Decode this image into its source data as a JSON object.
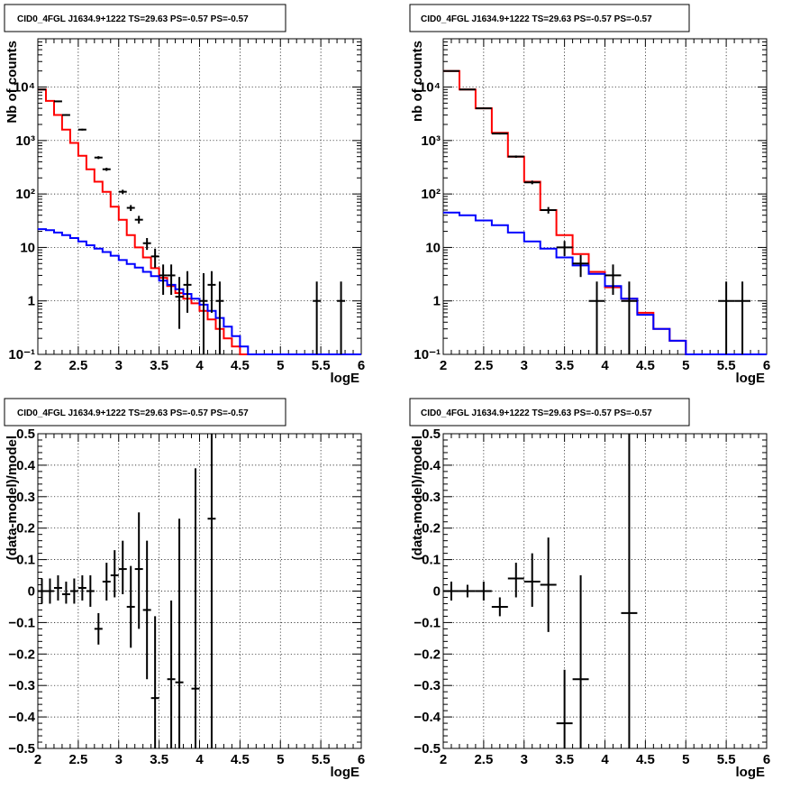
{
  "chart_data": [
    {
      "type": "step-histogram",
      "title": "CID0_4FGL J1634.9+1222 TS=29.63 PS=-0.57 PS=-0.57",
      "xlabel": "logE",
      "ylabel": "Nb of counts",
      "xlim": [
        2,
        6
      ],
      "ylim": [
        0.1,
        80000
      ],
      "log_y": true,
      "grid": true,
      "x_ticks": [
        "2",
        "2.5",
        "3",
        "3.5",
        "4",
        "4.5",
        "5",
        "5.5",
        "6"
      ],
      "y_ticks": [
        {
          "value": 0.1,
          "label": "10⁻¹"
        },
        {
          "value": 1,
          "label": "1"
        },
        {
          "value": 10,
          "label": "10"
        },
        {
          "value": 100,
          "label": "10²"
        },
        {
          "value": 1000,
          "label": "10³"
        },
        {
          "value": 10000,
          "label": "10⁴"
        }
      ],
      "bin_edges": [
        2.0,
        2.1,
        2.2,
        2.3,
        2.4,
        2.5,
        2.6,
        2.7,
        2.8,
        2.9,
        3.0,
        3.1,
        3.2,
        3.3,
        3.4,
        3.5,
        3.6,
        3.7,
        3.8,
        3.9,
        4.0,
        4.1,
        4.2,
        4.3,
        4.4,
        4.5,
        4.6,
        4.7,
        4.8,
        4.9,
        5.0,
        5.1,
        5.2,
        5.3,
        5.4,
        5.5,
        5.6,
        5.7,
        5.8,
        5.9,
        6.0
      ],
      "series": [
        {
          "color": "#ff0000",
          "values": [
            9000,
            5500,
            3000,
            1600,
            900,
            520,
            290,
            170,
            110,
            58,
            33,
            17,
            10,
            6.5,
            4.1,
            2.7,
            1.9,
            1.4,
            1.1,
            0.9,
            0.65,
            0.45,
            0.3,
            0.2,
            0.14,
            0.1,
            0.1,
            0.1,
            0.1,
            0.1,
            0.1,
            0.1,
            0.1,
            0.1,
            0.1,
            0.1,
            0.1,
            0.1,
            0.1,
            0.1
          ]
        },
        {
          "color": "#0000ff",
          "values": [
            22,
            21,
            19,
            17,
            15,
            13,
            11,
            9.5,
            8.2,
            7,
            5.8,
            4.9,
            4.2,
            3.5,
            2.9,
            2.4,
            2,
            1.65,
            1.35,
            1.1,
            0.85,
            0.65,
            0.48,
            0.33,
            0.22,
            0.14,
            0.1,
            0.1,
            0.1,
            0.1,
            0.1,
            0.1,
            0.1,
            0.1,
            0.1,
            0.1,
            0.1,
            0.1,
            0.1,
            0.1
          ]
        }
      ],
      "points": [
        {
          "x": 2.05,
          "y": 9000,
          "ylo": 8800,
          "yhi": 9200
        },
        {
          "x": 2.25,
          "y": 5400,
          "ylo": 5250,
          "yhi": 5550
        },
        {
          "x": 2.35,
          "y": 3000,
          "ylo": 2900,
          "yhi": 3100
        },
        {
          "x": 2.55,
          "y": 1600,
          "ylo": 1540,
          "yhi": 1660
        },
        {
          "x": 2.75,
          "y": 480,
          "ylo": 450,
          "yhi": 510
        },
        {
          "x": 2.85,
          "y": 290,
          "ylo": 270,
          "yhi": 310
        },
        {
          "x": 3.05,
          "y": 110,
          "ylo": 100,
          "yhi": 120
        },
        {
          "x": 3.15,
          "y": 55,
          "ylo": 48,
          "yhi": 62
        },
        {
          "x": 3.25,
          "y": 33,
          "ylo": 28,
          "yhi": 39
        },
        {
          "x": 3.35,
          "y": 12,
          "ylo": 9,
          "yhi": 15
        },
        {
          "x": 3.45,
          "y": 6.8,
          "ylo": 4.2,
          "yhi": 9.5
        },
        {
          "x": 3.55,
          "y": 3,
          "ylo": 1.3,
          "yhi": 4.8
        },
        {
          "x": 3.65,
          "y": 3,
          "ylo": 1.3,
          "yhi": 4.8
        },
        {
          "x": 3.75,
          "y": 1.2,
          "ylo": 0.3,
          "yhi": 2.8
        },
        {
          "x": 3.85,
          "y": 2,
          "ylo": 0.6,
          "yhi": 3.6
        },
        {
          "x": 4.05,
          "y": 1,
          "ylo": 0.1,
          "yhi": 3.3
        },
        {
          "x": 4.15,
          "y": 2,
          "ylo": 0.6,
          "yhi": 3.6
        },
        {
          "x": 4.25,
          "y": 1,
          "ylo": 0.1,
          "yhi": 2.3
        },
        {
          "x": 5.45,
          "y": 1,
          "ylo": 0.1,
          "yhi": 2.3
        },
        {
          "x": 5.75,
          "y": 1,
          "ylo": 0.1,
          "yhi": 2.3
        }
      ]
    },
    {
      "type": "step-histogram",
      "title": "CID0_4FGL J1634.9+1222 TS=29.63 PS=-0.57 PS=-0.57",
      "xlabel": "logE",
      "ylabel": "nb of counts",
      "xlim": [
        2,
        6
      ],
      "ylim": [
        0.1,
        80000
      ],
      "log_y": true,
      "grid": true,
      "x_ticks": [
        "2",
        "2.5",
        "3",
        "3.5",
        "4",
        "4.5",
        "5",
        "5.5",
        "6"
      ],
      "y_ticks": [
        {
          "value": 0.1,
          "label": "10⁻¹"
        },
        {
          "value": 1,
          "label": "1"
        },
        {
          "value": 10,
          "label": "10"
        },
        {
          "value": 100,
          "label": "10²"
        },
        {
          "value": 1000,
          "label": "10³"
        },
        {
          "value": 10000,
          "label": "10⁴"
        }
      ],
      "bin_edges": [
        2.0,
        2.2,
        2.4,
        2.6,
        2.8,
        3.0,
        3.2,
        3.4,
        3.6,
        3.8,
        4.0,
        4.2,
        4.4,
        4.6,
        4.8,
        5.0,
        5.2,
        5.4,
        5.6,
        5.8,
        6.0
      ],
      "series": [
        {
          "color": "#ff0000",
          "values": [
            20000,
            9000,
            4000,
            1400,
            500,
            170,
            50,
            17,
            7.5,
            3.5,
            1.8,
            1.1,
            0.6,
            0.3,
            0.18,
            0.1,
            0.1,
            0.1,
            0.1,
            0.1
          ]
        },
        {
          "color": "#0000ff",
          "values": [
            45,
            40,
            32,
            26,
            19,
            13,
            9.5,
            6.5,
            4.6,
            3.2,
            1.9,
            1.1,
            0.55,
            0.3,
            0.18,
            0.1,
            0.1,
            0.1,
            0.1,
            0.1
          ]
        }
      ],
      "points": [
        {
          "x": 2.1,
          "y": 20000,
          "ylo": 19700,
          "yhi": 20300
        },
        {
          "x": 2.3,
          "y": 9000,
          "ylo": 8800,
          "yhi": 9200
        },
        {
          "x": 2.5,
          "y": 4000,
          "ylo": 3900,
          "yhi": 4100
        },
        {
          "x": 2.7,
          "y": 1350,
          "ylo": 1300,
          "yhi": 1400
        },
        {
          "x": 2.9,
          "y": 500,
          "ylo": 475,
          "yhi": 525
        },
        {
          "x": 3.1,
          "y": 165,
          "ylo": 152,
          "yhi": 178
        },
        {
          "x": 3.3,
          "y": 50,
          "ylo": 43,
          "yhi": 57
        },
        {
          "x": 3.5,
          "y": 10,
          "ylo": 6.9,
          "yhi": 13.2
        },
        {
          "x": 3.7,
          "y": 5,
          "ylo": 2.8,
          "yhi": 7.2
        },
        {
          "x": 3.9,
          "y": 1,
          "ylo": 0.1,
          "yhi": 2.3
        },
        {
          "x": 4.1,
          "y": 3,
          "ylo": 1.3,
          "yhi": 4.8
        },
        {
          "x": 4.3,
          "y": 1,
          "ylo": 0.1,
          "yhi": 2.3
        },
        {
          "x": 5.5,
          "y": 1,
          "ylo": 0.1,
          "yhi": 2.3
        },
        {
          "x": 5.7,
          "y": 1,
          "ylo": 0.1,
          "yhi": 2.3
        }
      ]
    },
    {
      "type": "scatter",
      "title": "CID0_4FGL J1634.9+1222 TS=29.63 PS=-0.57 PS=-0.57",
      "xlabel": "logE",
      "ylabel": "(data-model)/model",
      "xlim": [
        2,
        6
      ],
      "ylim": [
        -0.5,
        0.5
      ],
      "log_y": false,
      "grid": true,
      "x_ticks": [
        "2",
        "2.5",
        "3",
        "3.5",
        "4",
        "4.5",
        "5",
        "5.5",
        "6"
      ],
      "y_ticks": [
        {
          "value": -0.5,
          "label": "−0.5"
        },
        {
          "value": -0.4,
          "label": "−0.4"
        },
        {
          "value": -0.3,
          "label": "−0.3"
        },
        {
          "value": -0.2,
          "label": "−0.2"
        },
        {
          "value": -0.1,
          "label": "−0.1"
        },
        {
          "value": 0,
          "label": "0"
        },
        {
          "value": 0.1,
          "label": "0.1"
        },
        {
          "value": 0.2,
          "label": "0.2"
        },
        {
          "value": 0.3,
          "label": "0.3"
        },
        {
          "value": 0.4,
          "label": "0.4"
        },
        {
          "value": 0.5,
          "label": "0.5"
        }
      ],
      "points": [
        {
          "x": 2.05,
          "y": 0.0,
          "ylo": -0.04,
          "yhi": 0.04
        },
        {
          "x": 2.15,
          "y": 0.0,
          "ylo": -0.04,
          "yhi": 0.04
        },
        {
          "x": 2.25,
          "y": 0.01,
          "ylo": -0.03,
          "yhi": 0.05
        },
        {
          "x": 2.35,
          "y": -0.01,
          "ylo": -0.04,
          "yhi": 0.03
        },
        {
          "x": 2.45,
          "y": 0.0,
          "ylo": -0.04,
          "yhi": 0.04
        },
        {
          "x": 2.55,
          "y": 0.01,
          "ylo": -0.03,
          "yhi": 0.05
        },
        {
          "x": 2.65,
          "y": 0.0,
          "ylo": -0.05,
          "yhi": 0.05
        },
        {
          "x": 2.75,
          "y": -0.12,
          "ylo": -0.17,
          "yhi": -0.07
        },
        {
          "x": 2.85,
          "y": 0.03,
          "ylo": -0.03,
          "yhi": 0.09
        },
        {
          "x": 2.95,
          "y": 0.05,
          "ylo": -0.02,
          "yhi": 0.13
        },
        {
          "x": 3.05,
          "y": 0.07,
          "ylo": -0.01,
          "yhi": 0.16
        },
        {
          "x": 3.15,
          "y": -0.05,
          "ylo": -0.18,
          "yhi": 0.08
        },
        {
          "x": 3.25,
          "y": 0.07,
          "ylo": -0.12,
          "yhi": 0.25
        },
        {
          "x": 3.35,
          "y": -0.06,
          "ylo": -0.28,
          "yhi": 0.16
        },
        {
          "x": 3.45,
          "y": -0.34,
          "ylo": -0.5,
          "yhi": -0.08
        },
        {
          "x": 3.65,
          "y": -0.28,
          "ylo": -0.5,
          "yhi": -0.03
        },
        {
          "x": 3.75,
          "y": -0.29,
          "ylo": -0.5,
          "yhi": 0.23
        },
        {
          "x": 3.95,
          "y": -0.31,
          "ylo": -0.5,
          "yhi": 0.39
        },
        {
          "x": 4.15,
          "y": 0.23,
          "ylo": -0.5,
          "yhi": 0.5
        }
      ]
    },
    {
      "type": "scatter",
      "title": "CID0_4FGL J1634.9+1222 TS=29.63 PS=-0.57 PS=-0.57",
      "xlabel": "logE",
      "ylabel": "(data-model)/model",
      "xlim": [
        2,
        6
      ],
      "ylim": [
        -0.5,
        0.5
      ],
      "log_y": false,
      "grid": true,
      "x_ticks": [
        "2",
        "2.5",
        "3",
        "3.5",
        "4",
        "4.5",
        "5",
        "5.5",
        "6"
      ],
      "y_ticks": [
        {
          "value": -0.5,
          "label": "−0.5"
        },
        {
          "value": -0.4,
          "label": "−0.4"
        },
        {
          "value": -0.3,
          "label": "−0.3"
        },
        {
          "value": -0.2,
          "label": "−0.2"
        },
        {
          "value": -0.1,
          "label": "−0.1"
        },
        {
          "value": 0,
          "label": "0"
        },
        {
          "value": 0.1,
          "label": "0.1"
        },
        {
          "value": 0.2,
          "label": "0.2"
        },
        {
          "value": 0.3,
          "label": "0.3"
        },
        {
          "value": 0.4,
          "label": "0.4"
        },
        {
          "value": 0.5,
          "label": "0.5"
        }
      ],
      "points": [
        {
          "x": 2.1,
          "y": 0.0,
          "ylo": -0.03,
          "yhi": 0.03
        },
        {
          "x": 2.3,
          "y": 0.0,
          "ylo": -0.02,
          "yhi": 0.02
        },
        {
          "x": 2.5,
          "y": 0.0,
          "ylo": -0.03,
          "yhi": 0.03
        },
        {
          "x": 2.7,
          "y": -0.05,
          "ylo": -0.08,
          "yhi": -0.02
        },
        {
          "x": 2.9,
          "y": 0.04,
          "ylo": -0.02,
          "yhi": 0.09
        },
        {
          "x": 3.1,
          "y": 0.03,
          "ylo": -0.05,
          "yhi": 0.12
        },
        {
          "x": 3.3,
          "y": 0.02,
          "ylo": -0.13,
          "yhi": 0.17
        },
        {
          "x": 3.5,
          "y": -0.42,
          "ylo": -0.5,
          "yhi": -0.25
        },
        {
          "x": 3.7,
          "y": -0.28,
          "ylo": -0.5,
          "yhi": 0.05
        },
        {
          "x": 4.3,
          "y": -0.07,
          "ylo": -0.5,
          "yhi": 0.5
        }
      ]
    }
  ]
}
